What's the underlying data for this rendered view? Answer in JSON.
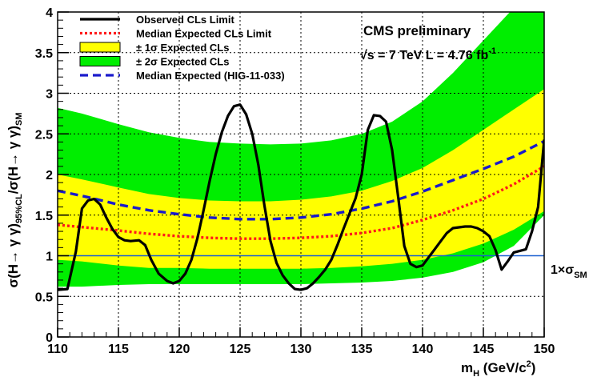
{
  "chart_data": {
    "type": "line",
    "title": "",
    "annotations": {
      "experiment": "CMS preliminary",
      "energy_prefix": "√s = 7 TeV L = 4.76 fb",
      "energy_sup": "-1",
      "ref_line_prefix": "1×σ",
      "ref_line_sub": "SM"
    },
    "xlabel": {
      "main": "m",
      "sub": "H",
      "mid": " (GeV/c",
      "sup": "2",
      "end": ")"
    },
    "ylabel": {
      "p1": "σ(H→ γ γ)",
      "sub1": "95%CL",
      "p2": "/σ(H→ γ γ)",
      "sub2": "SM"
    },
    "xlim": [
      110,
      150
    ],
    "ylim": [
      0,
      4
    ],
    "x_ticks": [
      110,
      115,
      120,
      125,
      130,
      135,
      140,
      145,
      150
    ],
    "y_ticks": [
      0,
      0.5,
      1,
      1.5,
      2,
      2.5,
      3,
      3.5,
      4
    ],
    "y_tick_labels": [
      "0",
      "0.5",
      "1",
      "1.5",
      "2",
      "2.5",
      "3",
      "3.5",
      "4"
    ],
    "grid": true,
    "legend_position": "top-left",
    "reference_line": {
      "y": 1.0,
      "color": "#1a5fd0"
    },
    "bands": [
      {
        "name": "± 2σ Expected CLs",
        "color": "#00ee00",
        "x": [
          110,
          112,
          115,
          117.5,
          120,
          122.5,
          125,
          127.5,
          130,
          132.5,
          135,
          137.5,
          140,
          142.5,
          145,
          147.5,
          150
        ],
        "lower": [
          0.62,
          0.62,
          0.64,
          0.65,
          0.65,
          0.65,
          0.65,
          0.65,
          0.65,
          0.66,
          0.67,
          0.69,
          0.73,
          0.8,
          0.92,
          1.12,
          1.5
        ],
        "upper": [
          2.82,
          2.75,
          2.62,
          2.52,
          2.45,
          2.4,
          2.38,
          2.37,
          2.38,
          2.42,
          2.5,
          2.65,
          2.9,
          3.25,
          3.65,
          4.05,
          4.6
        ]
      },
      {
        "name": "± 1σ Expected CLs",
        "color": "#ffff00",
        "x": [
          110,
          112,
          115,
          117.5,
          120,
          122.5,
          125,
          127.5,
          130,
          132.5,
          135,
          137.5,
          140,
          142.5,
          145,
          147.5,
          150
        ],
        "lower": [
          0.95,
          0.93,
          0.88,
          0.85,
          0.85,
          0.84,
          0.84,
          0.84,
          0.84,
          0.85,
          0.87,
          0.9,
          0.95,
          1.03,
          1.15,
          1.32,
          1.55
        ],
        "upper": [
          2.0,
          1.94,
          1.84,
          1.76,
          1.71,
          1.68,
          1.67,
          1.67,
          1.69,
          1.73,
          1.8,
          1.92,
          2.08,
          2.3,
          2.55,
          2.8,
          3.05
        ]
      }
    ],
    "series": [
      {
        "name": "Observed CLs Limit",
        "color": "#000000",
        "style": "solid",
        "x": [
          110,
          110.8,
          111.5,
          112,
          112.5,
          113,
          113.5,
          114,
          114.5,
          115,
          115.5,
          116,
          116.7,
          117.2,
          117.7,
          118.3,
          119,
          119.5,
          120,
          120.5,
          121,
          121.5,
          122,
          122.5,
          123,
          123.5,
          124,
          124.5,
          125,
          125.5,
          126,
          126.5,
          127,
          127.5,
          128,
          128.5,
          129,
          129.5,
          130,
          130.5,
          131,
          131.5,
          132,
          132.5,
          133,
          133.5,
          134,
          134.5,
          135,
          135.5,
          136,
          136.5,
          137,
          137.5,
          138,
          138.5,
          139,
          139.5,
          140,
          140.5,
          141,
          141.5,
          142,
          142.5,
          143,
          143.5,
          144,
          144.5,
          145,
          145.5,
          146,
          146.5,
          147,
          147.5,
          148,
          148.5,
          149,
          149.5,
          150
        ],
        "y": [
          0.58,
          0.59,
          1.05,
          1.58,
          1.68,
          1.7,
          1.63,
          1.47,
          1.33,
          1.23,
          1.19,
          1.18,
          1.19,
          1.13,
          0.95,
          0.78,
          0.69,
          0.66,
          0.69,
          0.78,
          0.95,
          1.22,
          1.56,
          1.92,
          2.25,
          2.52,
          2.72,
          2.84,
          2.86,
          2.74,
          2.5,
          2.12,
          1.62,
          1.18,
          0.91,
          0.76,
          0.66,
          0.59,
          0.58,
          0.6,
          0.66,
          0.74,
          0.83,
          0.95,
          1.13,
          1.33,
          1.52,
          1.71,
          2.0,
          2.55,
          2.73,
          2.72,
          2.65,
          2.3,
          1.72,
          1.12,
          0.9,
          0.86,
          0.88,
          0.98,
          1.08,
          1.18,
          1.28,
          1.34,
          1.35,
          1.36,
          1.36,
          1.34,
          1.3,
          1.24,
          1.07,
          0.83,
          0.93,
          1.04,
          1.06,
          1.08,
          1.3,
          1.6,
          2.43
        ]
      },
      {
        "name": "Median Expected CLs Limit",
        "color": "#ff1a1a",
        "style": "dotted",
        "x": [
          110,
          115,
          117.5,
          120,
          122.5,
          125,
          127.5,
          130,
          132.5,
          135,
          137.5,
          140,
          142.5,
          145,
          147.5,
          150
        ],
        "y": [
          1.38,
          1.31,
          1.27,
          1.24,
          1.22,
          1.21,
          1.21,
          1.22,
          1.24,
          1.28,
          1.34,
          1.44,
          1.56,
          1.7,
          1.88,
          2.1
        ]
      },
      {
        "name": "Median Expected (HIG-11-033)",
        "color": "#1a1acc",
        "style": "dashed",
        "x": [
          110,
          112.5,
          115,
          117.5,
          120,
          122.5,
          125,
          127.5,
          130,
          132.5,
          135,
          137.5,
          140,
          142.5,
          145,
          147.5,
          150
        ],
        "y": [
          1.8,
          1.72,
          1.63,
          1.56,
          1.51,
          1.47,
          1.45,
          1.45,
          1.47,
          1.51,
          1.58,
          1.67,
          1.79,
          1.93,
          2.07,
          2.22,
          2.41
        ]
      }
    ],
    "legend": [
      {
        "label": "Observed CLs Limit",
        "kind": "line",
        "color": "#000000",
        "style": "solid"
      },
      {
        "label": "Median Expected CLs Limit",
        "kind": "line",
        "color": "#ff1a1a",
        "style": "dotted"
      },
      {
        "label": "± 1σ Expected CLs",
        "kind": "box",
        "color": "#ffff00"
      },
      {
        "label": "± 2σ Expected CLs",
        "kind": "box",
        "color": "#00ee00"
      },
      {
        "label": "Median Expected (HIG-11-033)",
        "kind": "line",
        "color": "#1a1acc",
        "style": "dashed"
      }
    ]
  }
}
